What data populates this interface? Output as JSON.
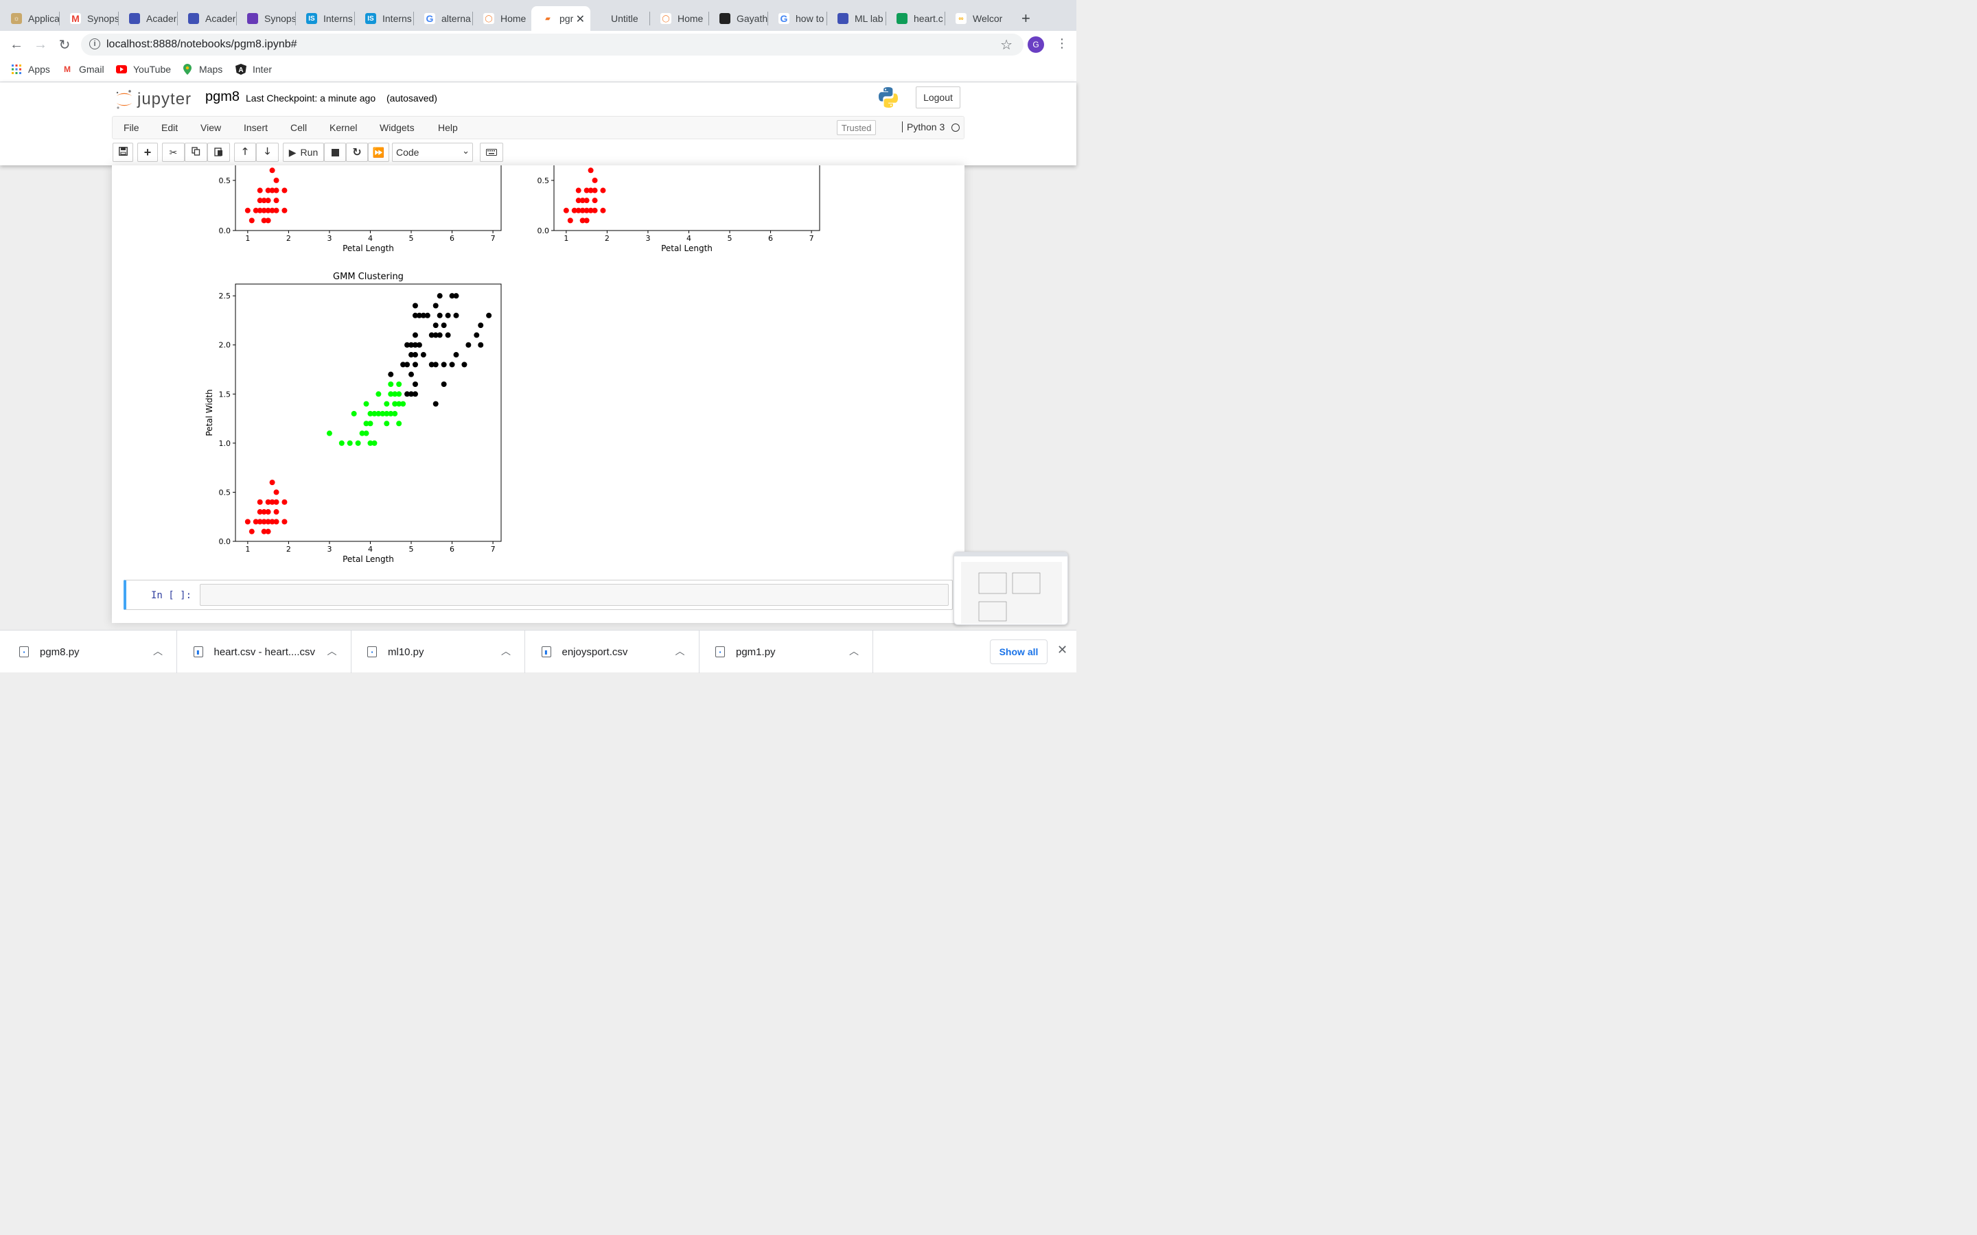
{
  "browser": {
    "tabs": [
      {
        "title": "Applica",
        "icon": "app-icon"
      },
      {
        "title": "Synops",
        "icon": "gmail-icon"
      },
      {
        "title": "Acader",
        "icon": "classroom-icon"
      },
      {
        "title": "Acader",
        "icon": "classroom-icon"
      },
      {
        "title": "Synops",
        "icon": "forms-icon"
      },
      {
        "title": "Interns",
        "icon": "internshala-icon"
      },
      {
        "title": "Interns",
        "icon": "internshala-icon"
      },
      {
        "title": "alterna",
        "icon": "google-icon"
      },
      {
        "title": "Home",
        "icon": "jupyter-icon"
      },
      {
        "title": "pgr",
        "icon": "notebook-icon"
      },
      {
        "title": "Untitle",
        "icon": "none"
      },
      {
        "title": "Home",
        "icon": "jupyter-icon"
      },
      {
        "title": "Gayath",
        "icon": "github-icon"
      },
      {
        "title": "how to",
        "icon": "google-icon"
      },
      {
        "title": "ML lab",
        "icon": "classroom-icon"
      },
      {
        "title": "heart.c",
        "icon": "sheets-icon"
      },
      {
        "title": "Welcor",
        "icon": "colab-icon"
      }
    ],
    "url": "localhost:8888/notebooks/pgm8.ipynb#",
    "profile_initial": "G",
    "bookmarks": [
      "Apps",
      "Gmail",
      "YouTube",
      "Maps",
      "Inter"
    ]
  },
  "jupyter": {
    "logo_text": "jupyter",
    "notebook_name": "pgm8",
    "checkpoint": "Last Checkpoint: a minute ago",
    "autosave": "(autosaved)",
    "logout_label": "Logout",
    "menu": [
      "File",
      "Edit",
      "View",
      "Insert",
      "Cell",
      "Kernel",
      "Widgets",
      "Help"
    ],
    "trusted_label": "Trusted",
    "kernel_name": "Python 3",
    "run_label": "Run",
    "cell_type": "Code",
    "prompt": "In [ ]:"
  },
  "chart_data": [
    {
      "type": "scatter",
      "title": "",
      "xlabel": "Petal Length",
      "ylabel": "",
      "xlim": [
        0.7,
        7.2
      ],
      "ylim": [
        0,
        0.65
      ],
      "xticks": [
        1,
        2,
        3,
        4,
        5,
        6,
        7
      ],
      "yticks": [
        0.0,
        0.5
      ],
      "series": [
        {
          "color": "#ff0000",
          "points": [
            [
              1.1,
              0.1
            ],
            [
              1.4,
              0.1
            ],
            [
              1.5,
              0.1
            ],
            [
              1.0,
              0.2
            ],
            [
              1.2,
              0.2
            ],
            [
              1.3,
              0.2
            ],
            [
              1.4,
              0.2
            ],
            [
              1.5,
              0.2
            ],
            [
              1.6,
              0.2
            ],
            [
              1.7,
              0.2
            ],
            [
              1.9,
              0.2
            ],
            [
              1.3,
              0.3
            ],
            [
              1.4,
              0.3
            ],
            [
              1.5,
              0.3
            ],
            [
              1.7,
              0.3
            ],
            [
              1.3,
              0.4
            ],
            [
              1.5,
              0.4
            ],
            [
              1.6,
              0.4
            ],
            [
              1.7,
              0.4
            ],
            [
              1.9,
              0.4
            ],
            [
              1.7,
              0.5
            ],
            [
              1.6,
              0.6
            ]
          ]
        }
      ]
    },
    {
      "type": "scatter",
      "title": "",
      "xlabel": "Petal Length",
      "ylabel": "",
      "xlim": [
        0.7,
        7.2
      ],
      "ylim": [
        0,
        0.65
      ],
      "xticks": [
        1,
        2,
        3,
        4,
        5,
        6,
        7
      ],
      "yticks": [
        0.0,
        0.5
      ],
      "series": [
        {
          "color": "#ff0000",
          "points": [
            [
              1.1,
              0.1
            ],
            [
              1.4,
              0.1
            ],
            [
              1.5,
              0.1
            ],
            [
              1.0,
              0.2
            ],
            [
              1.2,
              0.2
            ],
            [
              1.3,
              0.2
            ],
            [
              1.4,
              0.2
            ],
            [
              1.5,
              0.2
            ],
            [
              1.6,
              0.2
            ],
            [
              1.7,
              0.2
            ],
            [
              1.9,
              0.2
            ],
            [
              1.3,
              0.3
            ],
            [
              1.4,
              0.3
            ],
            [
              1.5,
              0.3
            ],
            [
              1.7,
              0.3
            ],
            [
              1.3,
              0.4
            ],
            [
              1.5,
              0.4
            ],
            [
              1.6,
              0.4
            ],
            [
              1.7,
              0.4
            ],
            [
              1.9,
              0.4
            ],
            [
              1.7,
              0.5
            ],
            [
              1.6,
              0.6
            ]
          ]
        }
      ]
    },
    {
      "type": "scatter",
      "title": "GMM Clustering",
      "xlabel": "Petal Length",
      "ylabel": "Petal Width",
      "xlim": [
        0.7,
        7.2
      ],
      "ylim": [
        0,
        2.62
      ],
      "xticks": [
        1,
        2,
        3,
        4,
        5,
        6,
        7
      ],
      "yticks": [
        0.0,
        0.5,
        1.0,
        1.5,
        2.0,
        2.5
      ],
      "series": [
        {
          "color": "#ff0000",
          "points": [
            [
              1.1,
              0.1
            ],
            [
              1.4,
              0.1
            ],
            [
              1.5,
              0.1
            ],
            [
              1.0,
              0.2
            ],
            [
              1.2,
              0.2
            ],
            [
              1.3,
              0.2
            ],
            [
              1.4,
              0.2
            ],
            [
              1.5,
              0.2
            ],
            [
              1.6,
              0.2
            ],
            [
              1.7,
              0.2
            ],
            [
              1.9,
              0.2
            ],
            [
              1.3,
              0.3
            ],
            [
              1.4,
              0.3
            ],
            [
              1.5,
              0.3
            ],
            [
              1.7,
              0.3
            ],
            [
              1.3,
              0.4
            ],
            [
              1.5,
              0.4
            ],
            [
              1.6,
              0.4
            ],
            [
              1.7,
              0.4
            ],
            [
              1.9,
              0.4
            ],
            [
              1.7,
              0.5
            ],
            [
              1.6,
              0.6
            ]
          ]
        },
        {
          "color": "#00ff00",
          "points": [
            [
              3.0,
              1.1
            ],
            [
              3.3,
              1.0
            ],
            [
              3.5,
              1.0
            ],
            [
              3.7,
              1.0
            ],
            [
              4.0,
              1.0
            ],
            [
              4.1,
              1.0
            ],
            [
              3.8,
              1.1
            ],
            [
              3.9,
              1.1
            ],
            [
              3.9,
              1.2
            ],
            [
              4.0,
              1.2
            ],
            [
              4.4,
              1.2
            ],
            [
              4.7,
              1.2
            ],
            [
              4.0,
              1.3
            ],
            [
              4.1,
              1.3
            ],
            [
              4.2,
              1.3
            ],
            [
              4.3,
              1.3
            ],
            [
              4.4,
              1.3
            ],
            [
              4.5,
              1.3
            ],
            [
              4.6,
              1.3
            ],
            [
              3.6,
              1.3
            ],
            [
              3.9,
              1.4
            ],
            [
              4.4,
              1.4
            ],
            [
              4.6,
              1.4
            ],
            [
              4.7,
              1.4
            ],
            [
              4.8,
              1.4
            ],
            [
              4.2,
              1.5
            ],
            [
              4.5,
              1.5
            ],
            [
              4.6,
              1.5
            ],
            [
              4.7,
              1.5
            ],
            [
              4.5,
              1.6
            ],
            [
              4.7,
              1.6
            ]
          ]
        },
        {
          "color": "#000000",
          "points": [
            [
              4.5,
              1.7
            ],
            [
              4.9,
              1.5
            ],
            [
              5.0,
              1.5
            ],
            [
              5.1,
              1.5
            ],
            [
              5.0,
              1.7
            ],
            [
              5.1,
              1.6
            ],
            [
              4.8,
              1.8
            ],
            [
              4.9,
              1.8
            ],
            [
              5.1,
              1.8
            ],
            [
              5.5,
              1.8
            ],
            [
              5.6,
              1.8
            ],
            [
              5.8,
              1.8
            ],
            [
              6.0,
              1.8
            ],
            [
              6.3,
              1.8
            ],
            [
              5.0,
              1.9
            ],
            [
              5.1,
              1.9
            ],
            [
              5.3,
              1.9
            ],
            [
              6.1,
              1.9
            ],
            [
              4.9,
              2.0
            ],
            [
              5.0,
              2.0
            ],
            [
              5.1,
              2.0
            ],
            [
              5.2,
              2.0
            ],
            [
              6.4,
              2.0
            ],
            [
              6.7,
              2.0
            ],
            [
              5.1,
              2.1
            ],
            [
              5.5,
              2.1
            ],
            [
              5.6,
              2.1
            ],
            [
              5.7,
              2.1
            ],
            [
              5.9,
              2.1
            ],
            [
              6.6,
              2.1
            ],
            [
              5.6,
              2.2
            ],
            [
              5.8,
              2.2
            ],
            [
              6.7,
              2.2
            ],
            [
              5.1,
              2.3
            ],
            [
              5.2,
              2.3
            ],
            [
              5.3,
              2.3
            ],
            [
              5.4,
              2.3
            ],
            [
              5.7,
              2.3
            ],
            [
              5.9,
              2.3
            ],
            [
              6.1,
              2.3
            ],
            [
              6.9,
              2.3
            ],
            [
              5.1,
              2.4
            ],
            [
              5.6,
              2.4
            ],
            [
              5.7,
              2.5
            ],
            [
              6.0,
              2.5
            ],
            [
              6.1,
              2.5
            ],
            [
              5.8,
              1.6
            ],
            [
              5.6,
              1.4
            ]
          ]
        }
      ]
    }
  ],
  "downloads": {
    "items": [
      "pgm8.py",
      "heart.csv - heart....csv",
      "ml10.py",
      "enjoysport.csv",
      "pgm1.py"
    ],
    "show_all_label": "Show all"
  }
}
